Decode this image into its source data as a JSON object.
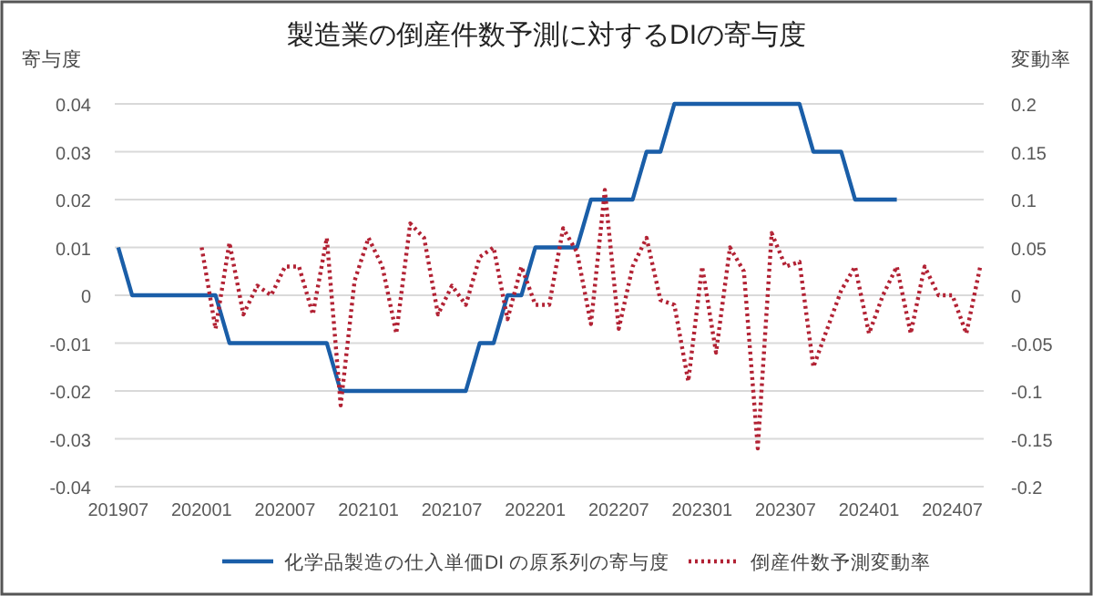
{
  "chart_data": {
    "type": "line",
    "title": "製造業の倒産件数予測に対するDIの寄与度",
    "ylabel": "寄与度",
    "y2label": "変動率",
    "categories": [
      "201907",
      null,
      null,
      null,
      null,
      null,
      "202001",
      null,
      null,
      null,
      null,
      null,
      "202007",
      null,
      null,
      null,
      null,
      null,
      "202101",
      null,
      null,
      null,
      null,
      null,
      "202107",
      null,
      null,
      null,
      null,
      null,
      "202201",
      null,
      null,
      null,
      null,
      null,
      "202207",
      null,
      null,
      null,
      null,
      null,
      "202301",
      null,
      null,
      null,
      null,
      null,
      "202307",
      null,
      null,
      null,
      null,
      null,
      "202401",
      null,
      null,
      null,
      null,
      null,
      "202407",
      null,
      null
    ],
    "ylim": [
      -0.04,
      0.04
    ],
    "yticks": [
      0.04,
      0.03,
      0.02,
      0.01,
      0,
      -0.01,
      -0.02,
      -0.03,
      -0.04
    ],
    "y2lim": [
      -0.2,
      0.2
    ],
    "y2ticks": [
      0.2,
      0.15,
      0.1,
      0.05,
      0,
      -0.05,
      -0.1,
      -0.15,
      -0.2
    ],
    "grid": "y",
    "legend": "bottom",
    "series": [
      {
        "name": "化学品製造の仕入単価DI の原系列の寄与度",
        "color": "#1a5ea8",
        "line_style": "solid",
        "values": [
          0.01,
          0,
          0,
          0,
          0,
          0,
          0,
          0,
          -0.01,
          -0.01,
          -0.01,
          -0.01,
          -0.01,
          -0.01,
          -0.01,
          -0.01,
          -0.02,
          -0.02,
          -0.02,
          -0.02,
          -0.02,
          -0.02,
          -0.02,
          -0.02,
          -0.02,
          -0.02,
          -0.01,
          -0.01,
          0,
          0,
          0.01,
          0.01,
          0.01,
          0.01,
          0.02,
          0.02,
          0.02,
          0.02,
          0.03,
          0.03,
          0.04,
          0.04,
          0.04,
          0.04,
          0.04,
          0.04,
          0.04,
          0.04,
          0.04,
          0.04,
          0.03,
          0.03,
          0.03,
          0.02,
          0.02,
          0.02,
          0.02,
          null,
          null,
          null,
          null,
          null,
          null
        ]
      },
      {
        "name": "倒産件数予測変動率",
        "color": "#b22234",
        "line_style": "dotted",
        "axis": "y2",
        "values": [
          null,
          null,
          null,
          null,
          null,
          null,
          0.05,
          -0.035,
          0.055,
          -0.02,
          0.01,
          0,
          0.03,
          0.03,
          -0.02,
          0.06,
          -0.115,
          0.015,
          0.06,
          0.03,
          -0.04,
          0.075,
          0.06,
          -0.02,
          0.01,
          -0.01,
          0.04,
          0.05,
          -0.025,
          0.03,
          -0.01,
          -0.01,
          0.07,
          0.045,
          -0.03,
          0.11,
          -0.035,
          0.03,
          0.06,
          -0.005,
          -0.01,
          -0.09,
          0.03,
          -0.06,
          0.05,
          0.025,
          -0.16,
          0.065,
          0.03,
          0.035,
          -0.075,
          -0.035,
          0.005,
          0.03,
          -0.04,
          0,
          0.03,
          -0.04,
          0.03,
          0,
          0,
          -0.04,
          0.03
        ]
      }
    ]
  }
}
